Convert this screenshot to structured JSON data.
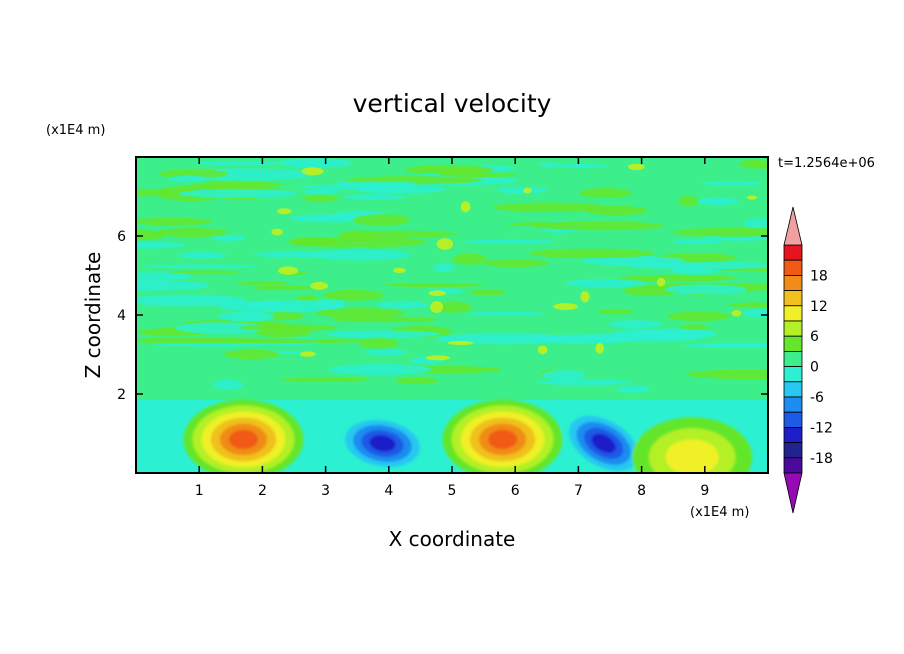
{
  "chart_data": {
    "type": "heatmap",
    "title": "vertical velocity",
    "xlabel": "X coordinate",
    "ylabel": "Z coordinate",
    "x_units": "(x1E4 m)",
    "y_units": "(x1E4 m)",
    "time_label": "t=1.2564e+06",
    "xlim": [
      0,
      10
    ],
    "ylim": [
      0,
      8
    ],
    "x_ticks": [
      1,
      2,
      3,
      4,
      5,
      6,
      7,
      8,
      9
    ],
    "y_ticks": [
      2,
      4,
      6
    ],
    "colorbar": {
      "ticks": [
        18,
        12,
        6,
        0,
        -6,
        -12,
        -18
      ],
      "levels": [
        -21,
        -18,
        -15,
        -12,
        -9,
        -6,
        -3,
        0,
        3,
        6,
        9,
        12,
        15,
        18,
        21
      ],
      "colors": [
        "#4b0a9c",
        "#23238f",
        "#1e1ec8",
        "#1e5ae6",
        "#1e8cf0",
        "#28c8f0",
        "#2cf0d2",
        "#3cef8a",
        "#64e62a",
        "#b4f028",
        "#f0f028",
        "#f0c01e",
        "#f08c19",
        "#f05a14",
        "#e6141e",
        "#f0a0a0",
        "#960ab4"
      ],
      "over_color": "#f0a0a0",
      "under_color": "#960ab4"
    },
    "features": [
      {
        "x": 1.7,
        "z": 0.85,
        "value": 18,
        "kind": "updraft"
      },
      {
        "x": 3.9,
        "z": 0.75,
        "value": -15,
        "kind": "downdraft"
      },
      {
        "x": 5.8,
        "z": 0.85,
        "value": 18,
        "kind": "updraft"
      },
      {
        "x": 7.4,
        "z": 0.75,
        "value": -15,
        "kind": "downdraft"
      },
      {
        "x": 8.8,
        "z": 0.4,
        "value": 9,
        "kind": "updraft"
      }
    ]
  }
}
